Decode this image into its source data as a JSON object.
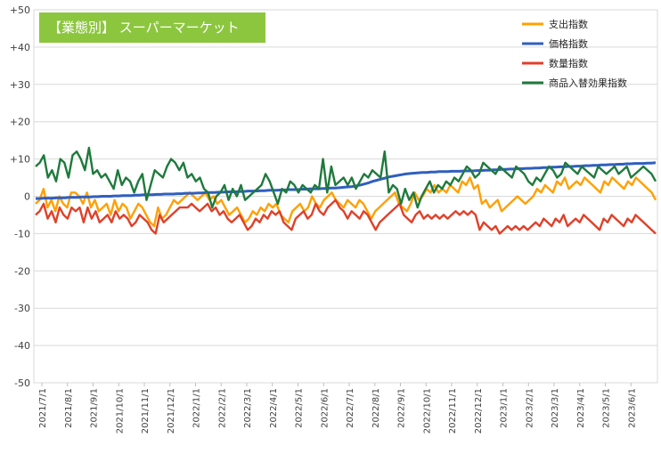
{
  "chart_data": {
    "type": "line",
    "title": "【業態別】 スーパーマーケット",
    "xlabel": "",
    "ylabel": "",
    "ylim": [
      -50,
      50
    ],
    "yticks": [
      "+50",
      "+40",
      "+30",
      "+20",
      "+10",
      "0",
      "-10",
      "-20",
      "-30",
      "-40",
      "-50"
    ],
    "grid": true,
    "legend_position": "top-right",
    "x_labels": [
      "2021/7/1",
      "2021/8/1",
      "2021/9/1",
      "2021/10/1",
      "2021/11/1",
      "2021/12/1",
      "2022/1/1",
      "2022/2/1",
      "2022/3/1",
      "2022/4/1",
      "2022/5/1",
      "2022/6/1",
      "2022/7/1",
      "2022/8/1",
      "2022/9/1",
      "2022/10/1",
      "2022/11/1",
      "2022/12/1",
      "2023/1/1",
      "2023/2/1",
      "2023/3/1",
      "2023/4/1",
      "2023/5/1",
      "2023/6/1"
    ],
    "series": [
      {
        "name": "支出指数",
        "color": "#ffa000",
        "values": [
          -2,
          -1,
          2,
          -3,
          -1,
          -4,
          0,
          -2,
          -3,
          1,
          1,
          0,
          -2,
          1,
          -3,
          -1,
          -4,
          -3,
          -2,
          -5,
          -1,
          -4,
          -2,
          -3,
          -6,
          -4,
          -2,
          -3,
          -5,
          -7,
          -8,
          -3,
          -6,
          -5,
          -3,
          -1,
          -2,
          -1,
          0,
          1,
          0,
          -1,
          0,
          1,
          -1,
          0,
          -2,
          -1,
          -3,
          -5,
          -4,
          -3,
          -5,
          -7,
          -6,
          -4,
          -5,
          -3,
          -4,
          -2,
          -3,
          -2,
          -5,
          -6,
          -7,
          -4,
          -3,
          -2,
          -4,
          -3,
          0,
          -2,
          -3,
          -1,
          0,
          1,
          -1,
          -2,
          -3,
          -1,
          -2,
          -3,
          -1,
          -2,
          -4,
          -6,
          -4,
          -3,
          -2,
          -1,
          0,
          1,
          -2,
          -3,
          -4,
          -2,
          1,
          -1,
          0,
          2,
          1,
          3,
          1,
          2,
          1,
          3,
          2,
          1,
          4,
          3,
          5,
          2,
          3,
          -2,
          -1,
          -3,
          -2,
          -1,
          -4,
          -3,
          -2,
          -1,
          0,
          -1,
          -2,
          -1,
          0,
          2,
          1,
          3,
          2,
          1,
          4,
          3,
          5,
          2,
          3,
          4,
          3,
          5,
          4,
          3,
          2,
          1,
          4,
          3,
          5,
          4,
          3,
          2,
          4,
          3,
          5,
          4,
          3,
          2,
          1,
          -1
        ]
      },
      {
        "name": "価格指数",
        "color": "#2f5fbf",
        "values": [
          -0.6,
          -0.6,
          -0.5,
          -0.5,
          -0.5,
          -0.4,
          -0.4,
          -0.4,
          -0.3,
          -0.3,
          -0.3,
          -0.2,
          -0.2,
          -0.2,
          -0.1,
          -0.1,
          0,
          0,
          0,
          0.1,
          0.1,
          0.2,
          0.2,
          0.2,
          0.3,
          0.3,
          0.4,
          0.4,
          0.4,
          0.5,
          0.5,
          0.6,
          0.6,
          0.6,
          0.7,
          0.7,
          0.8,
          0.8,
          0.8,
          0.9,
          0.9,
          1,
          1,
          1,
          1.1,
          1.1,
          1.2,
          1.2,
          1.2,
          1.3,
          1.3,
          1.4,
          1.4,
          1.4,
          1.5,
          1.5,
          1.6,
          1.6,
          1.6,
          1.7,
          1.7,
          1.8,
          1.8,
          1.8,
          1.9,
          1.9,
          2,
          2,
          2,
          2.1,
          2.1,
          2.2,
          2.2,
          2.3,
          2.4,
          2.5,
          2.6,
          2.8,
          3,
          3.3,
          3.6,
          4,
          4.3,
          4.6,
          4.9,
          5.2,
          5.4,
          5.6,
          5.8,
          6,
          6.1,
          6.2,
          6.3,
          6.4,
          6.4,
          6.5,
          6.5,
          6.6,
          6.6,
          6.6,
          6.7,
          6.7,
          6.7,
          6.8,
          6.8,
          6.8,
          6.9,
          6.9,
          7,
          7,
          7.1,
          7.1,
          7.2,
          7.2,
          7.3,
          7.3,
          7.4,
          7.4,
          7.5,
          7.5,
          7.6,
          7.6,
          7.7,
          7.7,
          7.8,
          7.8,
          7.9,
          7.9,
          8,
          8,
          8.1,
          8.1,
          8.2,
          8.2,
          8.3,
          8.3,
          8.4,
          8.4,
          8.5,
          8.5,
          8.6,
          8.6,
          8.7,
          8.7,
          8.8,
          8.8,
          8.8,
          8.9,
          8.9,
          9
        ]
      },
      {
        "name": "数量指数",
        "color": "#e0402a",
        "values": [
          -5,
          -4,
          -2,
          -6,
          -4,
          -7,
          -3,
          -5,
          -6,
          -3,
          -4,
          -3,
          -7,
          -3,
          -6,
          -4,
          -7,
          -6,
          -5,
          -7,
          -4,
          -6,
          -5,
          -6,
          -8,
          -7,
          -5,
          -6,
          -7,
          -9,
          -10,
          -5,
          -7,
          -6,
          -5,
          -4,
          -3,
          -3,
          -3,
          -2,
          -3,
          -4,
          -3,
          -2,
          -4,
          -3,
          -5,
          -4,
          -6,
          -7,
          -6,
          -5,
          -7,
          -9,
          -8,
          -6,
          -7,
          -5,
          -6,
          -4,
          -5,
          -4,
          -7,
          -8,
          -9,
          -6,
          -5,
          -4,
          -6,
          -5,
          -2,
          -4,
          -5,
          -3,
          -2,
          -1,
          -3,
          -4,
          -6,
          -4,
          -5,
          -6,
          -4,
          -5,
          -7,
          -9,
          -7,
          -6,
          -5,
          -4,
          -3,
          -2,
          -5,
          -6,
          -7,
          -5,
          -4,
          -6,
          -5,
          -6,
          -5,
          -6,
          -5,
          -6,
          -5,
          -4,
          -5,
          -4,
          -5,
          -4,
          -5,
          -9,
          -7,
          -8,
          -9,
          -8,
          -10,
          -9,
          -8,
          -9,
          -8,
          -9,
          -8,
          -9,
          -8,
          -7,
          -8,
          -6,
          -7,
          -8,
          -6,
          -7,
          -5,
          -8,
          -7,
          -6,
          -7,
          -5,
          -6,
          -7,
          -8,
          -9,
          -6,
          -7,
          -5,
          -6,
          -7,
          -8,
          -6,
          -7,
          -5,
          -6,
          -7,
          -8,
          -9,
          -10
        ]
      },
      {
        "name": "商品入替効果指数",
        "color": "#1e7a3c",
        "values": [
          8,
          9,
          11,
          5,
          7,
          4,
          10,
          9,
          5,
          11,
          12,
          10,
          7,
          13,
          6,
          7,
          5,
          6,
          4,
          2,
          7,
          3,
          5,
          4,
          1,
          4,
          6,
          -1,
          3,
          7,
          6,
          5,
          8,
          10,
          9,
          7,
          9,
          5,
          6,
          4,
          5,
          2,
          1,
          -3,
          0,
          1,
          3,
          -1,
          2,
          0,
          3,
          -1,
          0,
          1,
          2,
          3,
          6,
          4,
          1,
          -2,
          2,
          1,
          4,
          3,
          1,
          3,
          2,
          1,
          3,
          2,
          10,
          1,
          8,
          3,
          4,
          5,
          3,
          5,
          2,
          4,
          6,
          5,
          7,
          6,
          5,
          12,
          1,
          3,
          2,
          -2,
          2,
          -1,
          1,
          -3,
          0,
          2,
          4,
          1,
          3,
          2,
          4,
          3,
          5,
          4,
          6,
          8,
          7,
          5,
          6,
          9,
          8,
          7,
          6,
          8,
          7,
          6,
          5,
          8,
          7,
          6,
          4,
          3,
          5,
          4,
          6,
          8,
          7,
          5,
          6,
          9,
          8,
          7,
          6,
          8,
          7,
          6,
          5,
          8,
          7,
          6,
          7,
          8,
          6,
          7,
          8,
          5,
          6,
          7,
          8,
          7,
          6,
          4
        ]
      }
    ]
  }
}
